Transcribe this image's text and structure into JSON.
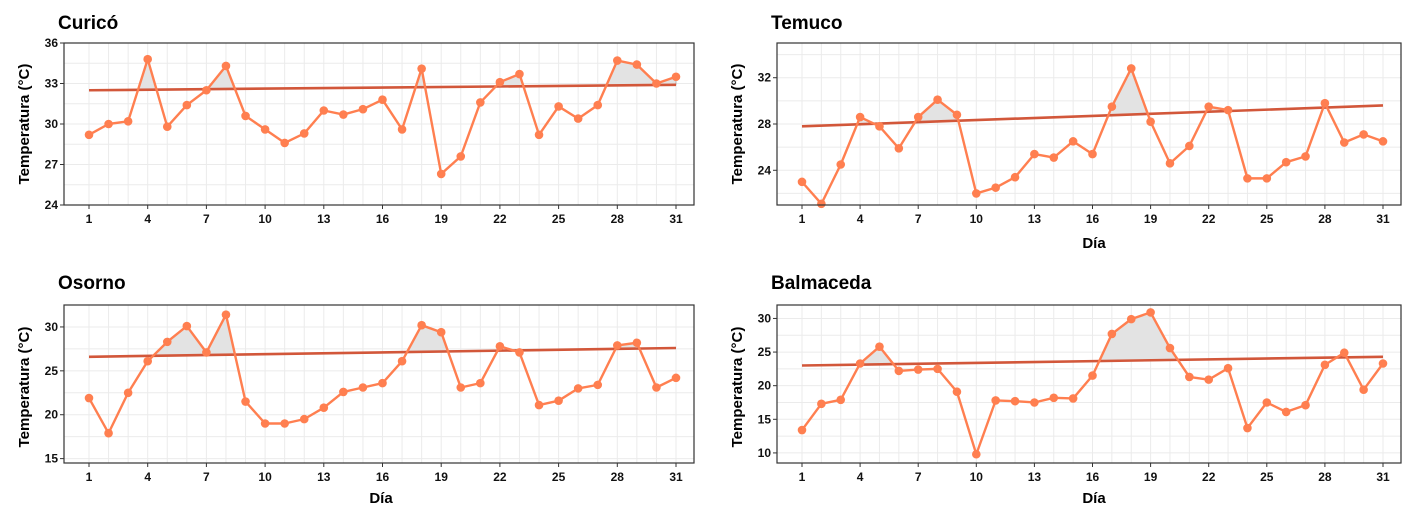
{
  "colors": {
    "series_line": "#ff7f50",
    "trend_line": "#d2573a",
    "area_fill": "#e3e3e3",
    "area_stroke": "#a8a8a8",
    "grid": "#ebebeb",
    "frame": "#333333"
  },
  "chart_data": [
    {
      "type": "line",
      "title": "Curicó",
      "xlabel": "",
      "ylabel": "Temperatura (°C)",
      "xlim": [
        1,
        31
      ],
      "ylim": [
        24,
        36
      ],
      "xticks": [
        1,
        4,
        7,
        10,
        13,
        16,
        19,
        22,
        25,
        28,
        31
      ],
      "yticks": [
        24,
        27,
        30,
        33,
        36
      ],
      "grid": true,
      "x": [
        1,
        2,
        3,
        4,
        5,
        6,
        7,
        8,
        9,
        10,
        11,
        12,
        13,
        14,
        15,
        16,
        17,
        18,
        19,
        20,
        21,
        22,
        23,
        24,
        25,
        26,
        27,
        28,
        29,
        30,
        31
      ],
      "values": [
        29.2,
        30.0,
        30.2,
        34.8,
        29.8,
        31.4,
        32.5,
        34.3,
        30.6,
        29.6,
        28.6,
        29.3,
        31.0,
        30.7,
        31.1,
        31.8,
        29.6,
        34.1,
        26.3,
        27.6,
        31.6,
        33.1,
        33.7,
        29.2,
        31.3,
        30.4,
        31.4,
        34.7,
        34.4,
        33.0,
        33.5
      ],
      "trend": [
        32.5,
        32.9
      ]
    },
    {
      "type": "line",
      "title": "Temuco",
      "xlabel": "Día",
      "ylabel": "Temperatura (°C)",
      "xlim": [
        1,
        31
      ],
      "ylim": [
        21,
        35
      ],
      "xticks": [
        1,
        4,
        7,
        10,
        13,
        16,
        19,
        22,
        25,
        28,
        31
      ],
      "yticks": [
        24,
        28,
        32
      ],
      "grid": true,
      "x": [
        1,
        2,
        3,
        4,
        5,
        6,
        7,
        8,
        9,
        10,
        11,
        12,
        13,
        14,
        15,
        16,
        17,
        18,
        19,
        20,
        21,
        22,
        23,
        24,
        25,
        26,
        27,
        28,
        29,
        30,
        31
      ],
      "values": [
        23.0,
        21.1,
        24.5,
        28.6,
        27.8,
        25.9,
        28.6,
        30.1,
        28.8,
        22.0,
        22.5,
        23.4,
        25.4,
        25.1,
        26.5,
        25.4,
        29.5,
        32.8,
        28.2,
        24.6,
        26.1,
        29.5,
        29.2,
        23.3,
        23.3,
        24.7,
        25.2,
        29.8,
        26.4,
        27.1,
        26.5
      ],
      "trend": [
        27.8,
        29.6
      ]
    },
    {
      "type": "line",
      "title": "Osorno",
      "xlabel": "Día",
      "ylabel": "Temperatura (°C)",
      "xlim": [
        1,
        31
      ],
      "ylim": [
        14.5,
        32.5
      ],
      "xticks": [
        1,
        4,
        7,
        10,
        13,
        16,
        19,
        22,
        25,
        28,
        31
      ],
      "yticks": [
        15,
        20,
        25,
        30
      ],
      "grid": true,
      "x": [
        1,
        2,
        3,
        4,
        5,
        6,
        7,
        8,
        9,
        10,
        11,
        12,
        13,
        14,
        15,
        16,
        17,
        18,
        19,
        20,
        21,
        22,
        23,
        24,
        25,
        26,
        27,
        28,
        29,
        30,
        31
      ],
      "values": [
        21.9,
        17.9,
        22.5,
        26.1,
        28.3,
        30.1,
        27.1,
        31.4,
        21.5,
        19.0,
        19.0,
        19.5,
        20.8,
        22.6,
        23.1,
        23.6,
        26.1,
        30.2,
        29.4,
        23.1,
        23.6,
        27.8,
        27.1,
        21.1,
        21.6,
        23.0,
        23.4,
        27.9,
        28.2,
        23.1,
        24.2
      ],
      "trend": [
        26.6,
        27.6
      ]
    },
    {
      "type": "line",
      "title": "Balmaceda",
      "xlabel": "Día",
      "ylabel": "Temperatura (°C)",
      "xlim": [
        1,
        31
      ],
      "ylim": [
        8.5,
        32
      ],
      "xticks": [
        1,
        4,
        7,
        10,
        13,
        16,
        19,
        22,
        25,
        28,
        31
      ],
      "yticks": [
        10,
        15,
        20,
        25,
        30
      ],
      "grid": true,
      "x": [
        1,
        2,
        3,
        4,
        5,
        6,
        7,
        8,
        9,
        10,
        11,
        12,
        13,
        14,
        15,
        16,
        17,
        18,
        19,
        20,
        21,
        22,
        23,
        24,
        25,
        26,
        27,
        28,
        29,
        30,
        31
      ],
      "values": [
        13.4,
        17.3,
        17.9,
        23.3,
        25.8,
        22.2,
        22.4,
        22.5,
        19.1,
        9.8,
        17.8,
        17.7,
        17.5,
        18.2,
        18.1,
        21.5,
        27.7,
        29.9,
        30.9,
        25.6,
        21.3,
        20.9,
        22.6,
        13.7,
        17.5,
        16.1,
        17.1,
        23.1,
        24.9,
        19.4,
        23.3
      ],
      "trend": [
        23.0,
        24.3
      ]
    }
  ]
}
